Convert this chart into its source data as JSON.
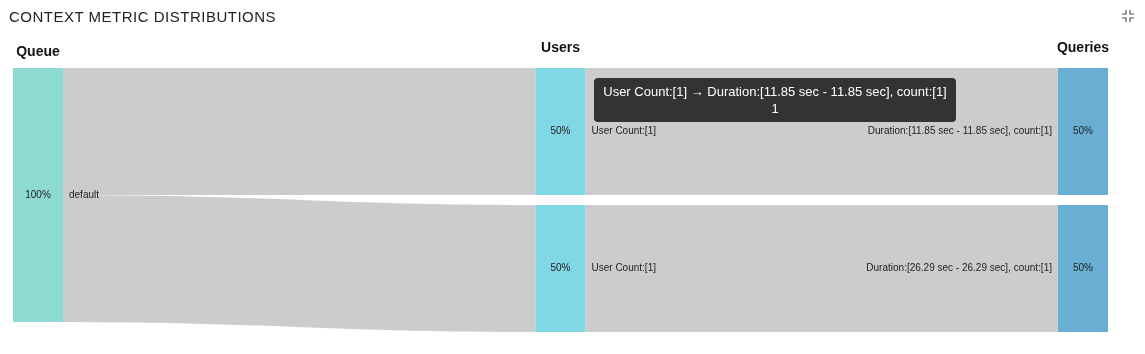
{
  "chart_data": {
    "type": "other",
    "title": "CONTEXT METRIC DISTRIBUTIONS",
    "categories": [
      "default",
      "User Count:[1]",
      "User Count:[1]",
      "Duration:[11.85 sec - 11.85 sec], count:[1]",
      "Duration:[26.29 sec - 26.29 sec], count:[1]"
    ],
    "series": [
      {
        "name": "Queue",
        "color": "#8ddad3",
        "values": [
          100,
          null,
          null,
          null,
          null
        ],
        "value_labels": [
          "100%",
          null,
          null,
          null,
          null
        ]
      },
      {
        "name": "Users",
        "color": "#80d7e5",
        "values": [
          null,
          50,
          50,
          null,
          null
        ],
        "value_labels": [
          null,
          "50%",
          "50%",
          null,
          null
        ]
      },
      {
        "name": "Queries",
        "color": "#68afd3",
        "values": [
          null,
          null,
          null,
          50,
          50
        ],
        "value_labels": [
          null,
          null,
          null,
          "50%",
          "50%"
        ]
      }
    ],
    "annotations": [
      {
        "text": "User Count:[1] → Duration:[11.85 sec - 11.85 sec], count:[1] 1"
      }
    ]
  }
}
